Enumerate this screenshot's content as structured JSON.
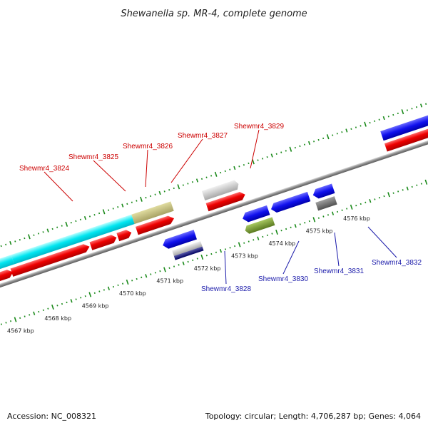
{
  "title": "Shewanella sp. MR-4, complete genome",
  "footer": {
    "accession": "Accession: NC_008321",
    "summary": "Topology: circular; Length: 4,706,287 bp; Genes: 4,064"
  },
  "colors": {
    "forward_label": "#cc0000",
    "reverse_label": "#1a1aaa",
    "tick": "#1a8a1a",
    "backbone": "#808080"
  },
  "ticks": [
    {
      "label": "4567 kbp"
    },
    {
      "label": "4568 kbp"
    },
    {
      "label": "4569 kbp"
    },
    {
      "label": "4570 kbp"
    },
    {
      "label": "4571 kbp"
    },
    {
      "label": "4572 kbp"
    },
    {
      "label": "4573 kbp"
    },
    {
      "label": "4574 kbp"
    },
    {
      "label": "4575 kbp"
    },
    {
      "label": "4576 kbp"
    }
  ],
  "genes": [
    {
      "label": "Shewmr4_3824",
      "strand": "+"
    },
    {
      "label": "Shewmr4_3825",
      "strand": "+"
    },
    {
      "label": "Shewmr4_3826",
      "strand": "+"
    },
    {
      "label": "Shewmr4_3827",
      "strand": "+"
    },
    {
      "label": "Shewmr4_3829",
      "strand": "+"
    },
    {
      "label": "Shewmr4_3828",
      "strand": "-"
    },
    {
      "label": "Shewmr4_3830",
      "strand": "-"
    },
    {
      "label": "Shewmr4_3831",
      "strand": "-"
    },
    {
      "label": "Shewmr4_3832",
      "strand": "-"
    }
  ]
}
